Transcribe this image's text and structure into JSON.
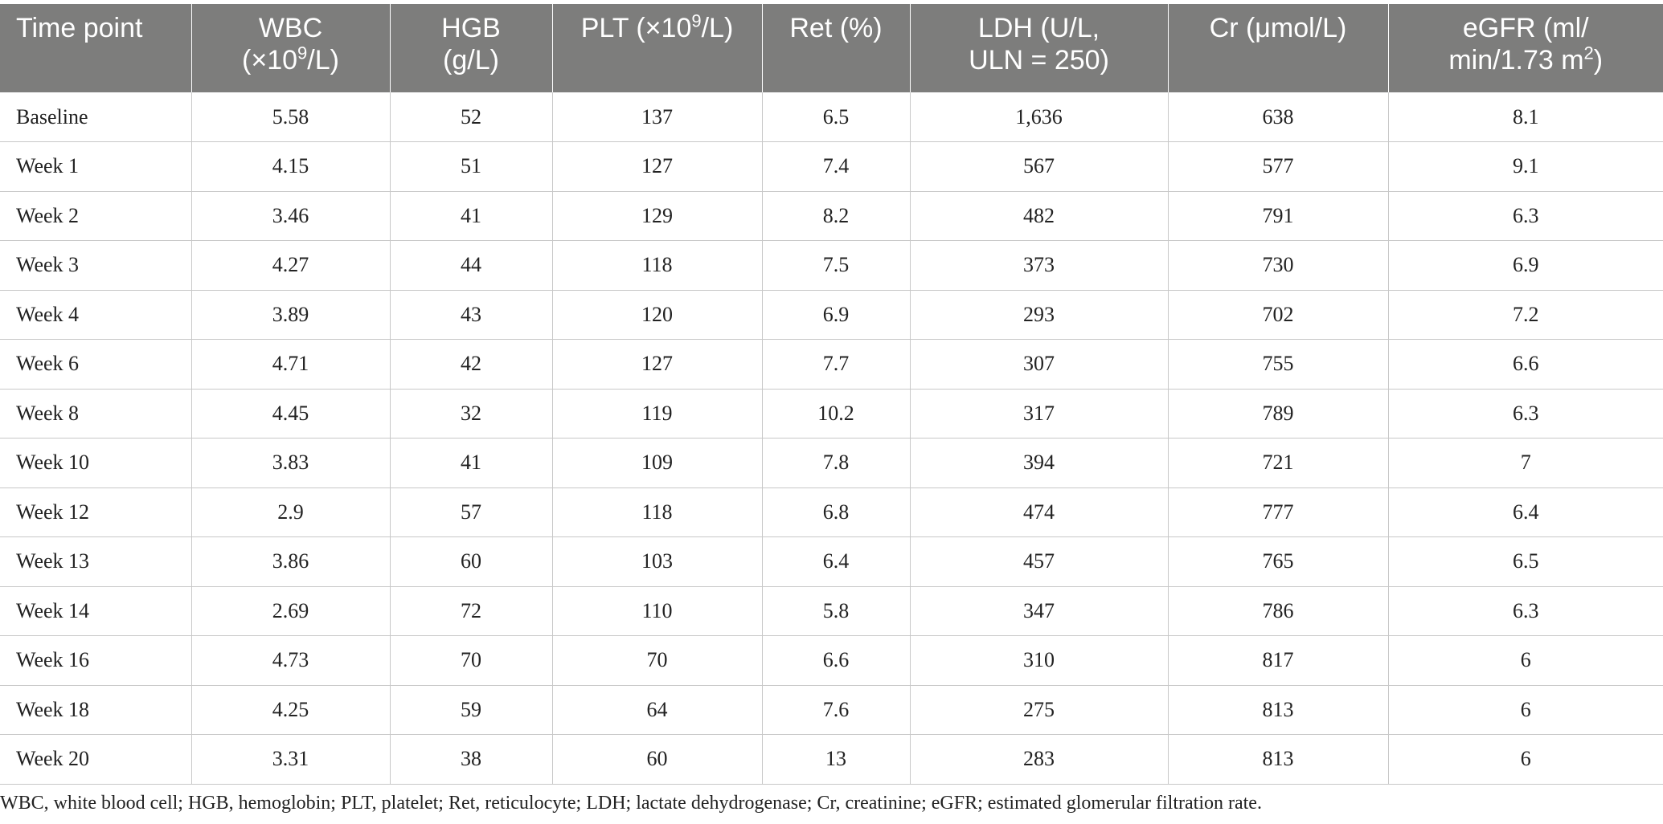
{
  "table": {
    "headers": [
      {
        "line1": "Time point",
        "line2": ""
      },
      {
        "line1": "WBC",
        "line2_pre": "(×10",
        "line2_sup": "9",
        "line2_post": "/L)"
      },
      {
        "line1": "HGB",
        "line2": "(g/L)"
      },
      {
        "line1_pre": "PLT (×10",
        "line1_sup": "9",
        "line1_post": "/L)"
      },
      {
        "line1": "Ret (%)"
      },
      {
        "line1": "LDH (U/L,",
        "line2": "ULN = 250)"
      },
      {
        "line1": "Cr (μmol/L)"
      },
      {
        "line1": "eGFR (ml/",
        "line2_pre": "min/1.73 m",
        "line2_sup": "2",
        "line2_post": ")"
      }
    ],
    "rows": [
      [
        "Baseline",
        "5.58",
        "52",
        "137",
        "6.5",
        "1,636",
        "638",
        "8.1"
      ],
      [
        "Week 1",
        "4.15",
        "51",
        "127",
        "7.4",
        "567",
        "577",
        "9.1"
      ],
      [
        "Week 2",
        "3.46",
        "41",
        "129",
        "8.2",
        "482",
        "791",
        "6.3"
      ],
      [
        "Week 3",
        "4.27",
        "44",
        "118",
        "7.5",
        "373",
        "730",
        "6.9"
      ],
      [
        "Week 4",
        "3.89",
        "43",
        "120",
        "6.9",
        "293",
        "702",
        "7.2"
      ],
      [
        "Week 6",
        "4.71",
        "42",
        "127",
        "7.7",
        "307",
        "755",
        "6.6"
      ],
      [
        "Week 8",
        "4.45",
        "32",
        "119",
        "10.2",
        "317",
        "789",
        "6.3"
      ],
      [
        "Week 10",
        "3.83",
        "41",
        "109",
        "7.8",
        "394",
        "721",
        "7"
      ],
      [
        "Week 12",
        "2.9",
        "57",
        "118",
        "6.8",
        "474",
        "777",
        "6.4"
      ],
      [
        "Week 13",
        "3.86",
        "60",
        "103",
        "6.4",
        "457",
        "765",
        "6.5"
      ],
      [
        "Week 14",
        "2.69",
        "72",
        "110",
        "5.8",
        "347",
        "786",
        "6.3"
      ],
      [
        "Week 16",
        "4.73",
        "70",
        "70",
        "6.6",
        "310",
        "817",
        "6"
      ],
      [
        "Week 18",
        "4.25",
        "59",
        "64",
        "7.6",
        "275",
        "813",
        "6"
      ],
      [
        "Week 20",
        "3.31",
        "38",
        "60",
        "13",
        "283",
        "813",
        "6"
      ]
    ]
  },
  "footnote": "WBC, white blood cell; HGB, hemoglobin; PLT, platelet; Ret, reticulocyte; LDH; lactate dehydrogenase; Cr, creatinine; eGFR; estimated glomerular filtration rate."
}
